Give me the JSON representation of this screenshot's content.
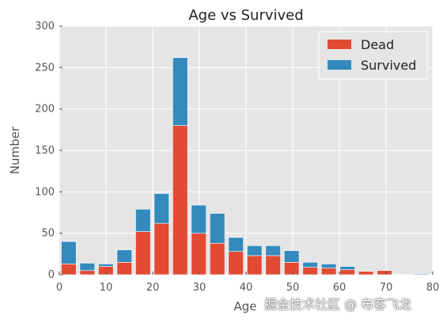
{
  "chart_data": {
    "type": "bar",
    "stacked": true,
    "title": "Age vs Survived",
    "xlabel": "Age",
    "ylabel": "Number",
    "xlim": [
      0,
      80
    ],
    "ylim": [
      0,
      300
    ],
    "x_ticks": [
      "0",
      "10",
      "20",
      "30",
      "40",
      "50",
      "60",
      "70",
      "80"
    ],
    "y_ticks": [
      "0",
      "50",
      "100",
      "150",
      "200",
      "250",
      "300"
    ],
    "grid": true,
    "legend_position": "top-right",
    "bin_width": 3.98,
    "bin_starts": [
      0.42,
      4.4,
      8.38,
      12.36,
      16.34,
      20.32,
      24.3,
      28.28,
      32.26,
      36.24,
      40.22,
      44.2,
      48.18,
      52.16,
      56.14,
      60.12,
      64.1,
      68.08,
      72.06,
      76.04
    ],
    "series": [
      {
        "name": "Dead",
        "color": "#E24A33",
        "values": [
          13,
          5,
          10,
          15,
          52,
          62,
          180,
          50,
          38,
          28,
          23,
          23,
          15,
          9,
          8,
          6,
          4,
          5,
          0,
          0
        ]
      },
      {
        "name": "Survived",
        "color": "#348ABD",
        "values": [
          27,
          9,
          3,
          15,
          27,
          36,
          82,
          34,
          36,
          17,
          12,
          12,
          14,
          6,
          5,
          4,
          0,
          0,
          0,
          1
        ]
      }
    ]
  },
  "watermark": "掘金技术社区 @ 布客飞龙"
}
